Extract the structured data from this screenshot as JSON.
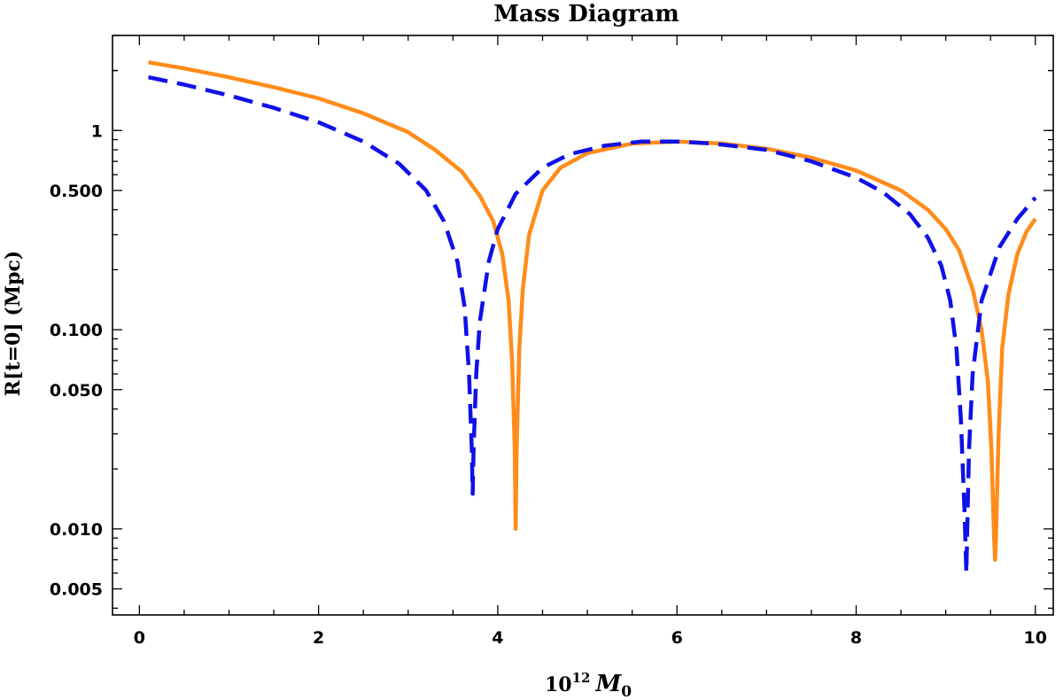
{
  "chart_data": {
    "type": "line",
    "title": "Mass Diagram",
    "xlabel": {
      "base": "10",
      "exponent": "12",
      "symbol": "M",
      "subscript": "0"
    },
    "ylabel": "R[t=0] (Mpc)",
    "xlim": [
      -0.3,
      10.2
    ],
    "ylim": [
      0.0037,
      3.0
    ],
    "yscale": "log",
    "x_ticks": [
      0,
      2,
      4,
      6,
      8,
      10
    ],
    "x_tick_labels": [
      "0",
      "2",
      "4",
      "6",
      "8",
      "10"
    ],
    "y_ticks": [
      0.005,
      0.01,
      0.05,
      0.1,
      0.5,
      1
    ],
    "y_tick_labels": [
      "0.005",
      "0.010",
      "0.050",
      "0.100",
      "0.500",
      "1"
    ],
    "grid": false,
    "series": [
      {
        "color": "#ff8c1a",
        "dash": "solid",
        "x": [
          0.1,
          0.5,
          1.0,
          1.5,
          2.0,
          2.5,
          3.0,
          3.3,
          3.6,
          3.8,
          3.95,
          4.05,
          4.12,
          4.16,
          4.19,
          4.2,
          4.21,
          4.24,
          4.28,
          4.35,
          4.5,
          4.7,
          5.0,
          5.5,
          6.0,
          6.5,
          7.0,
          7.5,
          8.0,
          8.5,
          8.8,
          9.0,
          9.15,
          9.3,
          9.4,
          9.47,
          9.51,
          9.54,
          9.55,
          9.56,
          9.59,
          9.63,
          9.7,
          9.8,
          9.9,
          10.0
        ],
        "y": [
          2.2,
          2.05,
          1.85,
          1.65,
          1.45,
          1.22,
          0.98,
          0.8,
          0.62,
          0.47,
          0.35,
          0.24,
          0.14,
          0.07,
          0.025,
          0.01,
          0.025,
          0.08,
          0.16,
          0.3,
          0.5,
          0.65,
          0.77,
          0.86,
          0.88,
          0.86,
          0.81,
          0.73,
          0.63,
          0.5,
          0.4,
          0.32,
          0.25,
          0.16,
          0.1,
          0.055,
          0.025,
          0.009,
          0.007,
          0.009,
          0.03,
          0.08,
          0.15,
          0.24,
          0.31,
          0.36
        ]
      },
      {
        "color": "#1010e8",
        "dash": "dashed",
        "x": [
          0.1,
          0.5,
          1.0,
          1.5,
          2.0,
          2.5,
          2.9,
          3.2,
          3.4,
          3.55,
          3.63,
          3.68,
          3.71,
          3.72,
          3.73,
          3.76,
          3.8,
          3.9,
          4.0,
          4.2,
          4.5,
          4.8,
          5.2,
          5.6,
          6.0,
          6.4,
          7.0,
          7.5,
          8.0,
          8.3,
          8.6,
          8.8,
          8.95,
          9.05,
          9.12,
          9.17,
          9.21,
          9.23,
          9.24,
          9.26,
          9.3,
          9.4,
          9.6,
          9.8,
          10.0
        ],
        "y": [
          1.85,
          1.7,
          1.5,
          1.3,
          1.1,
          0.88,
          0.68,
          0.5,
          0.35,
          0.22,
          0.13,
          0.06,
          0.025,
          0.015,
          0.025,
          0.06,
          0.11,
          0.22,
          0.32,
          0.48,
          0.65,
          0.76,
          0.84,
          0.88,
          0.88,
          0.86,
          0.8,
          0.7,
          0.58,
          0.49,
          0.38,
          0.29,
          0.21,
          0.14,
          0.08,
          0.035,
          0.012,
          0.006,
          0.01,
          0.025,
          0.06,
          0.14,
          0.26,
          0.36,
          0.46
        ]
      }
    ]
  }
}
